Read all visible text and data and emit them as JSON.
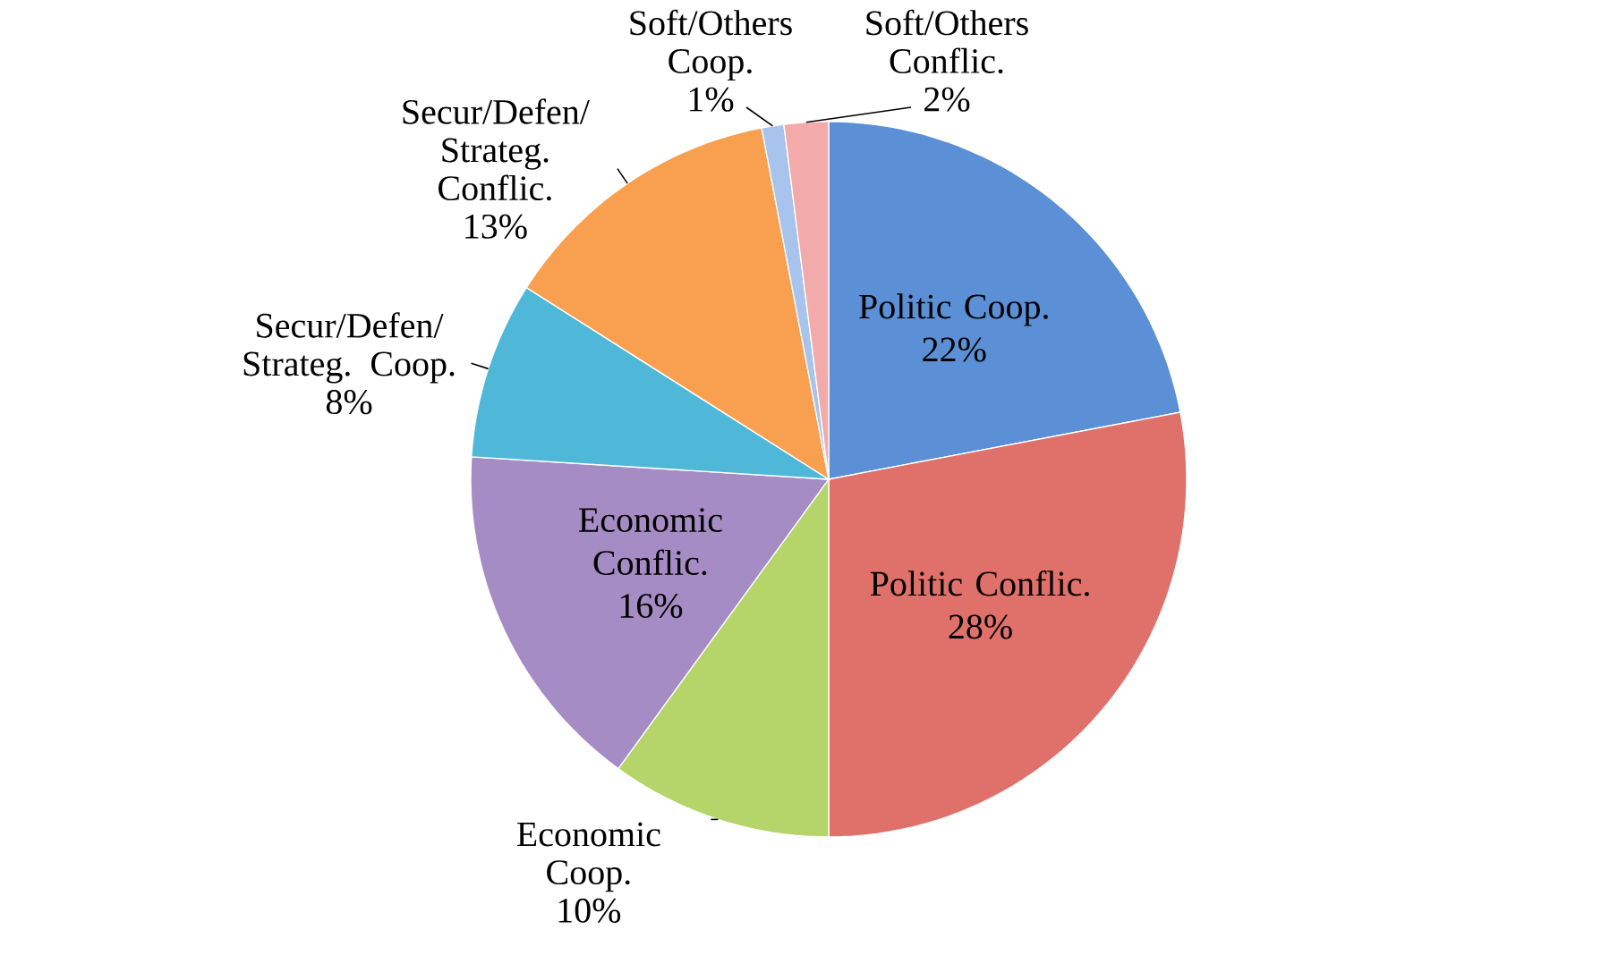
{
  "chart_data": {
    "type": "pie",
    "categories": [
      "Politic Coop.",
      "Politic Conflic.",
      "Economic Coop.",
      "Economic Conflic.",
      "Secur/Defen/ Strateg. Coop.",
      "Secur/Defen/ Strateg. Conflic.",
      "Soft/Others Coop.",
      "Soft/Others Conflic."
    ],
    "values": [
      22,
      28,
      10,
      16,
      8,
      13,
      1,
      2
    ],
    "value_labels": [
      "22%",
      "28%",
      "10%",
      "16%",
      "8%",
      "13%",
      "1%",
      "2%"
    ],
    "colors": [
      "#5b8fd6",
      "#e0706a",
      "#b5d46a",
      "#a68cc4",
      "#4fb8d8",
      "#f9a050",
      "#a9c4ec",
      "#f2aaaa"
    ]
  }
}
